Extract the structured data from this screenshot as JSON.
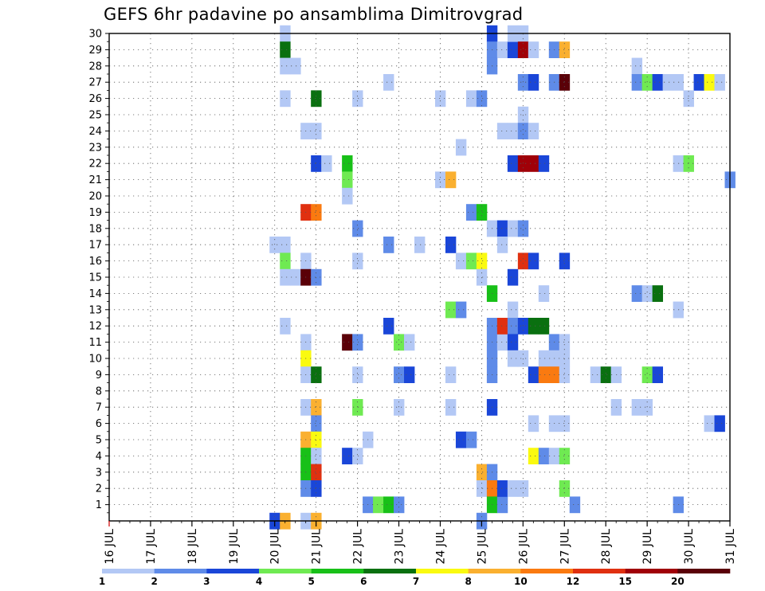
{
  "chart_data": {
    "type": "heatmap",
    "title": "GEFS 6hr padavine po ansamblima Dimitrovgrad",
    "x_tick_labels": [
      "16 JUL",
      "17 JUL",
      "18 JUL",
      "19 JUL",
      "20 JUL",
      "21 JUL",
      "22 JUL",
      "23 JUL",
      "24 JUL",
      "25 JUL",
      "26 JUL",
      "27 JUL",
      "28 JUL",
      "29 JUL",
      "30 JUL",
      "31 JUL"
    ],
    "y_tick_labels": [
      "1",
      "2",
      "3",
      "4",
      "5",
      "6",
      "7",
      "8",
      "9",
      "10",
      "11",
      "12",
      "13",
      "14",
      "15",
      "16",
      "17",
      "18",
      "19",
      "20",
      "21",
      "22",
      "23",
      "24",
      "25",
      "26",
      "27",
      "28",
      "29",
      "30"
    ],
    "x_range_days": [
      16,
      31
    ],
    "y_range": [
      0,
      30
    ],
    "grid": "dotted",
    "colorbar": {
      "labels": [
        "1",
        "2",
        "3",
        "4",
        "5",
        "6",
        "7",
        "8",
        "10",
        "12",
        "15",
        "20"
      ],
      "colors": [
        "#b3c8f5",
        "#5f8be8",
        "#1a46d8",
        "#6fea52",
        "#18c018",
        "#0a7010",
        "#fafa10",
        "#fab030",
        "#fa7a10",
        "#e03010",
        "#a00008",
        "#5a0008"
      ]
    },
    "cells": [
      [
        20.25,
        30,
        0
      ],
      [
        20.25,
        29,
        5
      ],
      [
        20.25,
        28,
        0
      ],
      [
        20.5,
        28,
        0
      ],
      [
        20.25,
        26,
        0
      ],
      [
        20.25,
        17,
        0
      ],
      [
        20.0,
        17,
        0
      ],
      [
        20.25,
        16,
        3
      ],
      [
        20.75,
        16,
        0
      ],
      [
        20.25,
        15,
        0
      ],
      [
        20.5,
        15,
        0
      ],
      [
        20.25,
        12,
        0
      ],
      [
        20.0,
        0,
        2
      ],
      [
        20.25,
        0,
        7
      ],
      [
        20.75,
        0,
        0
      ],
      [
        21.0,
        26,
        5
      ],
      [
        21.0,
        24,
        0
      ],
      [
        20.75,
        24,
        0
      ],
      [
        21.0,
        22,
        2
      ],
      [
        21.25,
        22,
        0
      ],
      [
        20.75,
        19,
        9
      ],
      [
        21.0,
        19,
        8
      ],
      [
        20.75,
        15,
        11
      ],
      [
        21.0,
        15,
        1
      ],
      [
        20.75,
        11,
        0
      ],
      [
        20.75,
        10,
        6
      ],
      [
        20.75,
        9,
        0
      ],
      [
        21.0,
        9,
        5
      ],
      [
        20.75,
        7,
        0
      ],
      [
        21.0,
        7,
        7
      ],
      [
        21.0,
        6,
        1
      ],
      [
        20.75,
        5,
        7
      ],
      [
        21.0,
        5,
        6
      ],
      [
        20.75,
        4,
        4
      ],
      [
        21.0,
        4,
        0
      ],
      [
        20.75,
        3,
        4
      ],
      [
        21.0,
        3,
        9
      ],
      [
        20.75,
        2,
        1
      ],
      [
        21.0,
        2,
        2
      ],
      [
        21.0,
        0,
        7
      ],
      [
        21.75,
        22,
        4
      ],
      [
        21.75,
        21,
        3
      ],
      [
        21.75,
        20,
        0
      ],
      [
        22.0,
        26,
        0
      ],
      [
        21.75,
        11,
        11
      ],
      [
        22.0,
        11,
        1
      ],
      [
        21.75,
        4,
        2
      ],
      [
        22.0,
        4,
        0
      ],
      [
        22.25,
        5,
        0
      ],
      [
        22.0,
        18,
        1
      ],
      [
        22.0,
        16,
        0
      ],
      [
        22.0,
        9,
        0
      ],
      [
        22.0,
        7,
        3
      ],
      [
        22.25,
        1,
        1
      ],
      [
        22.5,
        1,
        3
      ],
      [
        22.75,
        1,
        4
      ],
      [
        23.0,
        1,
        1
      ],
      [
        22.75,
        27,
        0
      ],
      [
        22.75,
        17,
        1
      ],
      [
        22.75,
        12,
        2
      ],
      [
        23.0,
        11,
        3
      ],
      [
        23.25,
        11,
        0
      ],
      [
        23.0,
        9,
        1
      ],
      [
        23.25,
        9,
        2
      ],
      [
        23.0,
        7,
        0
      ],
      [
        23.5,
        17,
        0
      ],
      [
        24.0,
        26,
        0
      ],
      [
        24.0,
        21,
        0
      ],
      [
        24.25,
        21,
        7
      ],
      [
        24.25,
        17,
        2
      ],
      [
        24.25,
        13,
        3
      ],
      [
        24.5,
        13,
        1
      ],
      [
        24.25,
        9,
        0
      ],
      [
        24.25,
        7,
        0
      ],
      [
        24.5,
        23,
        0
      ],
      [
        24.5,
        16,
        0
      ],
      [
        24.75,
        16,
        3
      ],
      [
        25.0,
        16,
        6
      ],
      [
        24.5,
        5,
        2
      ],
      [
        24.75,
        5,
        1
      ],
      [
        24.75,
        26,
        0
      ],
      [
        25.0,
        26,
        1
      ],
      [
        24.75,
        19,
        1
      ],
      [
        25.0,
        19,
        4
      ],
      [
        25.0,
        15,
        0
      ],
      [
        25.25,
        14,
        4
      ],
      [
        25.0,
        3,
        7
      ],
      [
        25.25,
        3,
        1
      ],
      [
        25.0,
        2,
        0
      ],
      [
        25.25,
        2,
        8
      ],
      [
        25.25,
        1,
        4
      ],
      [
        25.5,
        1,
        1
      ],
      [
        25.0,
        0,
        1
      ],
      [
        25.25,
        30,
        2
      ],
      [
        25.25,
        29,
        1
      ],
      [
        25.5,
        29,
        0
      ],
      [
        25.75,
        29,
        2
      ],
      [
        25.25,
        28,
        1
      ],
      [
        25.25,
        18,
        0
      ],
      [
        25.5,
        18,
        2
      ],
      [
        25.75,
        18,
        0
      ],
      [
        26.0,
        18,
        1
      ],
      [
        25.25,
        12,
        1
      ],
      [
        25.25,
        11,
        1
      ],
      [
        25.5,
        11,
        0
      ],
      [
        25.25,
        10,
        1
      ],
      [
        25.25,
        9,
        1
      ],
      [
        25.25,
        7,
        2
      ],
      [
        25.5,
        24,
        0
      ],
      [
        25.75,
        24,
        0
      ],
      [
        25.5,
        17,
        0
      ],
      [
        25.75,
        22,
        2
      ],
      [
        25.75,
        15,
        2
      ],
      [
        25.75,
        13,
        0
      ],
      [
        25.5,
        12,
        9
      ],
      [
        25.75,
        12,
        1
      ],
      [
        25.75,
        11,
        2
      ],
      [
        25.75,
        10,
        0
      ],
      [
        25.5,
        2,
        2
      ],
      [
        25.75,
        2,
        0
      ],
      [
        26.0,
        2,
        0
      ],
      [
        25.75,
        30,
        0
      ],
      [
        26.0,
        30,
        0
      ],
      [
        26.0,
        29,
        10
      ],
      [
        26.25,
        29,
        0
      ],
      [
        26.0,
        27,
        1
      ],
      [
        26.25,
        27,
        2
      ],
      [
        26.0,
        25,
        0
      ],
      [
        26.0,
        24,
        1
      ],
      [
        26.25,
        24,
        0
      ],
      [
        26.0,
        22,
        10
      ],
      [
        26.25,
        22,
        10
      ],
      [
        26.5,
        22,
        2
      ],
      [
        26.0,
        16,
        9
      ],
      [
        26.25,
        16,
        2
      ],
      [
        26.0,
        12,
        2
      ],
      [
        26.25,
        12,
        5
      ],
      [
        26.5,
        12,
        5
      ],
      [
        26.0,
        10,
        0
      ],
      [
        26.25,
        9,
        2
      ],
      [
        26.25,
        6,
        0
      ],
      [
        26.25,
        4,
        6
      ],
      [
        26.5,
        4,
        1
      ],
      [
        26.5,
        14,
        0
      ],
      [
        26.75,
        27,
        1
      ],
      [
        27.0,
        27,
        11
      ],
      [
        26.75,
        29,
        1
      ],
      [
        27.0,
        29,
        7
      ],
      [
        27.0,
        16,
        2
      ],
      [
        26.75,
        11,
        1
      ],
      [
        27.0,
        11,
        0
      ],
      [
        26.5,
        10,
        0
      ],
      [
        26.75,
        10,
        0
      ],
      [
        27.0,
        10,
        0
      ],
      [
        26.5,
        9,
        8
      ],
      [
        26.75,
        9,
        8
      ],
      [
        27.0,
        9,
        0
      ],
      [
        26.75,
        6,
        0
      ],
      [
        27.0,
        6,
        0
      ],
      [
        26.75,
        4,
        0
      ],
      [
        27.0,
        4,
        3
      ],
      [
        27.0,
        2,
        3
      ],
      [
        27.25,
        1,
        1
      ],
      [
        27.75,
        9,
        0
      ],
      [
        28.0,
        9,
        5
      ],
      [
        28.25,
        9,
        0
      ],
      [
        28.25,
        7,
        0
      ],
      [
        28.75,
        28,
        0
      ],
      [
        28.75,
        27,
        1
      ],
      [
        29.0,
        27,
        3
      ],
      [
        29.25,
        27,
        2
      ],
      [
        29.5,
        27,
        0
      ],
      [
        28.75,
        14,
        1
      ],
      [
        29.0,
        14,
        0
      ],
      [
        29.25,
        14,
        5
      ],
      [
        29.0,
        9,
        3
      ],
      [
        29.25,
        9,
        2
      ],
      [
        28.75,
        7,
        0
      ],
      [
        29.0,
        7,
        0
      ],
      [
        29.75,
        27,
        0
      ],
      [
        30.25,
        27,
        2
      ],
      [
        30.5,
        27,
        6
      ],
      [
        30.75,
        27,
        0
      ],
      [
        30.0,
        26,
        0
      ],
      [
        29.75,
        22,
        0
      ],
      [
        30.0,
        22,
        3
      ],
      [
        29.75,
        13,
        0
      ],
      [
        29.75,
        1,
        1
      ],
      [
        30.5,
        6,
        0
      ],
      [
        30.75,
        6,
        2
      ],
      [
        31.0,
        21,
        1
      ]
    ]
  }
}
